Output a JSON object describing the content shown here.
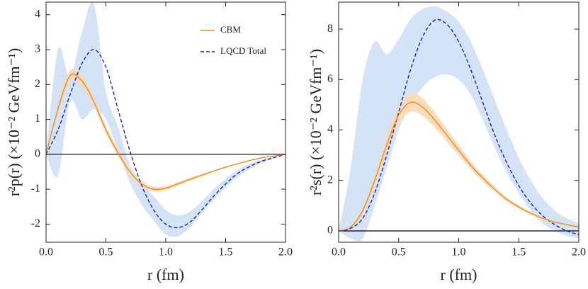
{
  "chart_data": [
    {
      "type": "line",
      "xlabel": "r (fm)",
      "ylabel": "r²p(r) (×10⁻² GeVfm⁻¹)",
      "x": [
        0,
        0.1,
        0.2,
        0.3,
        0.4,
        0.5,
        0.6,
        0.7,
        0.8,
        0.9,
        1.0,
        1.1,
        1.2,
        1.3,
        1.4,
        1.5,
        1.6,
        1.7,
        1.8,
        1.9,
        2.0
      ],
      "xlim": [
        0,
        2
      ],
      "ylim": [
        -2.52,
        4.36
      ],
      "xticks": [
        {
          "value": 0,
          "label": "0.0"
        },
        {
          "value": 0.5,
          "label": "0.5"
        },
        {
          "value": 1,
          "label": "1.0"
        },
        {
          "value": 1.5,
          "label": "1.5"
        },
        {
          "value": 2,
          "label": "2.0"
        }
      ],
      "yticks": [
        -2,
        -1,
        0,
        1,
        2,
        3,
        4
      ],
      "zero_line": true,
      "legend": "top-right",
      "series": [
        {
          "name": "LQCD Total",
          "color": "#1a1acc",
          "dashed": true,
          "band_color": "#cfe0f5",
          "values": [
            0,
            0.7,
            1.7,
            2.6,
            3.0,
            2.5,
            1.3,
            0.1,
            -0.9,
            -1.6,
            -2.0,
            -2.1,
            -1.95,
            -1.6,
            -1.2,
            -0.85,
            -0.55,
            -0.35,
            -0.2,
            -0.1,
            0
          ],
          "lower": [
            0,
            -0.6,
            1.5,
            1.0,
            1.3,
            1.0,
            0.1,
            -0.8,
            -1.45,
            -1.9,
            -2.3,
            -2.35,
            -2.1,
            -1.7,
            -1.3,
            -0.95,
            -0.65,
            -0.42,
            -0.25,
            -0.12,
            0
          ],
          "upper": [
            0,
            3.0,
            2.2,
            3.5,
            4.3,
            1.8,
            0.8,
            -0.3,
            -0.8,
            -1.2,
            -1.6,
            -1.75,
            -1.65,
            -1.35,
            -1.0,
            -0.7,
            -0.45,
            -0.28,
            -0.15,
            -0.07,
            0
          ]
        },
        {
          "name": "CBM",
          "color": "#f08a1c",
          "dashed": false,
          "band_color": "#fbd9b4",
          "values": [
            0,
            1.3,
            2.25,
            2.1,
            1.5,
            0.7,
            0.05,
            -0.5,
            -0.85,
            -1.0,
            -0.97,
            -0.85,
            -0.72,
            -0.6,
            -0.48,
            -0.37,
            -0.27,
            -0.18,
            -0.1,
            -0.05,
            0
          ],
          "lower": [
            0,
            1.2,
            2.1,
            1.95,
            1.38,
            0.6,
            -0.04,
            -0.58,
            -0.93,
            -1.07,
            -1.03,
            -0.9,
            -0.76,
            -0.63,
            -0.5,
            -0.39,
            -0.28,
            -0.19,
            -0.11,
            -0.05,
            0
          ],
          "upper": [
            0,
            1.4,
            2.4,
            2.25,
            1.62,
            0.8,
            0.14,
            -0.42,
            -0.77,
            -0.93,
            -0.91,
            -0.8,
            -0.68,
            -0.57,
            -0.46,
            -0.35,
            -0.26,
            -0.17,
            -0.09,
            -0.05,
            0
          ]
        }
      ]
    },
    {
      "type": "line",
      "xlabel": "r (fm)",
      "ylabel": "r²s(r) (×10⁻² GeVfm⁻¹)",
      "x": [
        0,
        0.1,
        0.2,
        0.3,
        0.4,
        0.5,
        0.6,
        0.7,
        0.8,
        0.9,
        1.0,
        1.1,
        1.2,
        1.3,
        1.4,
        1.5,
        1.6,
        1.7,
        1.8,
        1.9,
        2.0
      ],
      "xlim": [
        0,
        2
      ],
      "ylim": [
        -0.45,
        9.07
      ],
      "xticks": [
        {
          "value": 0,
          "label": "0.0"
        },
        {
          "value": 0.5,
          "label": "0.5"
        },
        {
          "value": 1,
          "label": "1.0"
        },
        {
          "value": 1.5,
          "label": "1.5"
        },
        {
          "value": 2,
          "label": "2.0"
        }
      ],
      "yticks": [
        0,
        2,
        4,
        6,
        8
      ],
      "zero_line": true,
      "series": [
        {
          "color": "#1a1acc",
          "dashed": true,
          "band_color": "#cfe0f5",
          "values": [
            0,
            0.1,
            0.5,
            1.5,
            3.0,
            4.7,
            6.4,
            7.7,
            8.35,
            8.2,
            7.5,
            6.4,
            5.1,
            3.8,
            2.7,
            1.8,
            1.1,
            0.6,
            0.25,
            0.0,
            -0.15
          ],
          "lower": [
            0,
            -0.3,
            -0.3,
            1.0,
            2.5,
            4.0,
            5.0,
            5.7,
            6.1,
            6.2,
            6.0,
            5.4,
            4.4,
            3.3,
            2.3,
            1.5,
            0.8,
            0.3,
            0.0,
            -0.2,
            -0.3
          ],
          "upper": [
            0,
            2.5,
            6.0,
            7.5,
            7.0,
            7.6,
            8.4,
            8.8,
            8.9,
            8.7,
            8.3,
            7.5,
            6.4,
            5.2,
            4.0,
            2.9,
            2.0,
            1.3,
            0.8,
            0.5,
            0.3
          ]
        },
        {
          "color": "#f08a1c",
          "dashed": false,
          "band_color": "#fbd9b4",
          "values": [
            0,
            0.15,
            0.8,
            2.0,
            3.4,
            4.6,
            5.1,
            4.9,
            4.4,
            3.8,
            3.2,
            2.6,
            2.1,
            1.65,
            1.25,
            0.95,
            0.7,
            0.5,
            0.35,
            0.25,
            0.15
          ],
          "lower": [
            0,
            0.12,
            0.7,
            1.8,
            3.1,
            4.25,
            4.72,
            4.55,
            4.1,
            3.55,
            3.0,
            2.44,
            1.97,
            1.55,
            1.17,
            0.89,
            0.65,
            0.46,
            0.32,
            0.23,
            0.14
          ],
          "upper": [
            0,
            0.18,
            0.9,
            2.2,
            3.7,
            4.95,
            5.48,
            5.25,
            4.7,
            4.05,
            3.4,
            2.76,
            2.23,
            1.75,
            1.33,
            1.01,
            0.75,
            0.54,
            0.38,
            0.27,
            0.16
          ]
        }
      ]
    }
  ]
}
